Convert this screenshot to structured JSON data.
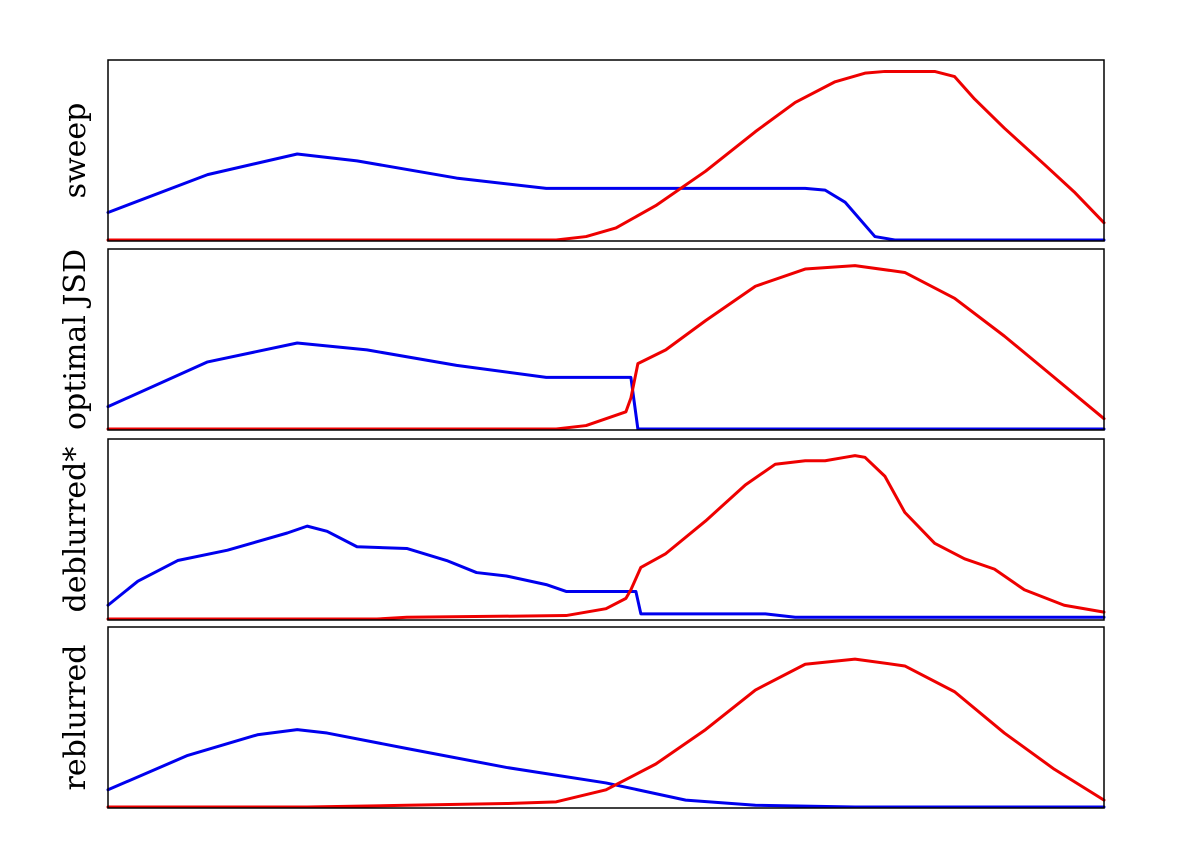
{
  "colors": {
    "series_a": "#0000ee",
    "series_b": "#ee0000",
    "frame": "#000000",
    "background": "#ffffff"
  },
  "chart_data": [
    {
      "type": "line",
      "panel_label": "sweep",
      "xlim": [
        0,
        1
      ],
      "ylim": [
        0,
        1
      ],
      "grid": false,
      "ticks": false,
      "series": [
        {
          "color": "#0000ee",
          "points": [
            [
              0,
              0.16
            ],
            [
              0.1,
              0.38
            ],
            [
              0.19,
              0.5
            ],
            [
              0.25,
              0.46
            ],
            [
              0.35,
              0.36
            ],
            [
              0.44,
              0.3
            ],
            [
              0.5,
              0.3
            ],
            [
              0.6,
              0.3
            ],
            [
              0.7,
              0.3
            ],
            [
              0.72,
              0.29
            ],
            [
              0.74,
              0.22
            ],
            [
              0.77,
              0.02
            ],
            [
              0.79,
              0.0
            ],
            [
              1,
              0.0
            ]
          ]
        },
        {
          "color": "#ee0000",
          "points": [
            [
              0,
              0.0
            ],
            [
              0.45,
              0.0
            ],
            [
              0.48,
              0.02
            ],
            [
              0.51,
              0.07
            ],
            [
              0.55,
              0.2
            ],
            [
              0.6,
              0.4
            ],
            [
              0.65,
              0.63
            ],
            [
              0.69,
              0.8
            ],
            [
              0.73,
              0.92
            ],
            [
              0.76,
              0.97
            ],
            [
              0.78,
              0.98
            ],
            [
              0.8,
              0.98
            ],
            [
              0.83,
              0.98
            ],
            [
              0.85,
              0.95
            ],
            [
              0.87,
              0.82
            ],
            [
              0.9,
              0.65
            ],
            [
              0.94,
              0.44
            ],
            [
              0.97,
              0.28
            ],
            [
              1,
              0.1
            ]
          ]
        }
      ]
    },
    {
      "type": "line",
      "panel_label": "optimal JSD",
      "xlim": [
        0,
        1
      ],
      "ylim": [
        0,
        1
      ],
      "grid": false,
      "ticks": false,
      "series": [
        {
          "color": "#0000ee",
          "points": [
            [
              0,
              0.13
            ],
            [
              0.1,
              0.39
            ],
            [
              0.19,
              0.5
            ],
            [
              0.26,
              0.46
            ],
            [
              0.35,
              0.37
            ],
            [
              0.44,
              0.3
            ],
            [
              0.52,
              0.3
            ],
            [
              0.525,
              0.3
            ],
            [
              0.532,
              0.0
            ],
            [
              1,
              0.0
            ]
          ]
        },
        {
          "color": "#ee0000",
          "points": [
            [
              0,
              0.0
            ],
            [
              0.45,
              0.0
            ],
            [
              0.48,
              0.02
            ],
            [
              0.52,
              0.1
            ],
            [
              0.525,
              0.18
            ],
            [
              0.532,
              0.38
            ],
            [
              0.56,
              0.46
            ],
            [
              0.6,
              0.63
            ],
            [
              0.65,
              0.83
            ],
            [
              0.7,
              0.93
            ],
            [
              0.75,
              0.95
            ],
            [
              0.8,
              0.91
            ],
            [
              0.85,
              0.76
            ],
            [
              0.9,
              0.54
            ],
            [
              0.95,
              0.3
            ],
            [
              1,
              0.06
            ]
          ]
        }
      ]
    },
    {
      "type": "line",
      "panel_label": "deblurred*",
      "xlim": [
        0,
        1
      ],
      "ylim": [
        0,
        1
      ],
      "grid": false,
      "ticks": false,
      "series": [
        {
          "color": "#0000ee",
          "points": [
            [
              0,
              0.08
            ],
            [
              0.03,
              0.22
            ],
            [
              0.07,
              0.34
            ],
            [
              0.12,
              0.4
            ],
            [
              0.18,
              0.5
            ],
            [
              0.2,
              0.54
            ],
            [
              0.22,
              0.51
            ],
            [
              0.25,
              0.42
            ],
            [
              0.3,
              0.41
            ],
            [
              0.34,
              0.34
            ],
            [
              0.37,
              0.27
            ],
            [
              0.4,
              0.25
            ],
            [
              0.44,
              0.2
            ],
            [
              0.46,
              0.16
            ],
            [
              0.5,
              0.16
            ],
            [
              0.52,
              0.16
            ],
            [
              0.53,
              0.16
            ],
            [
              0.535,
              0.03
            ],
            [
              0.6,
              0.03
            ],
            [
              0.66,
              0.03
            ],
            [
              0.69,
              0.01
            ],
            [
              1,
              0.01
            ]
          ]
        },
        {
          "color": "#ee0000",
          "points": [
            [
              0,
              0.0
            ],
            [
              0.27,
              0.0
            ],
            [
              0.3,
              0.01
            ],
            [
              0.46,
              0.02
            ],
            [
              0.5,
              0.06
            ],
            [
              0.52,
              0.12
            ],
            [
              0.525,
              0.17
            ],
            [
              0.535,
              0.3
            ],
            [
              0.56,
              0.38
            ],
            [
              0.6,
              0.57
            ],
            [
              0.64,
              0.78
            ],
            [
              0.67,
              0.9
            ],
            [
              0.7,
              0.92
            ],
            [
              0.72,
              0.92
            ],
            [
              0.74,
              0.94
            ],
            [
              0.75,
              0.95
            ],
            [
              0.76,
              0.94
            ],
            [
              0.78,
              0.83
            ],
            [
              0.8,
              0.62
            ],
            [
              0.83,
              0.44
            ],
            [
              0.86,
              0.35
            ],
            [
              0.89,
              0.29
            ],
            [
              0.92,
              0.17
            ],
            [
              0.96,
              0.08
            ],
            [
              1,
              0.04
            ]
          ]
        }
      ]
    },
    {
      "type": "line",
      "panel_label": "reblurred",
      "xlim": [
        0,
        1
      ],
      "ylim": [
        0,
        1
      ],
      "grid": false,
      "ticks": false,
      "series": [
        {
          "color": "#0000ee",
          "points": [
            [
              0,
              0.1
            ],
            [
              0.08,
              0.3
            ],
            [
              0.15,
              0.42
            ],
            [
              0.19,
              0.45
            ],
            [
              0.22,
              0.43
            ],
            [
              0.3,
              0.34
            ],
            [
              0.4,
              0.23
            ],
            [
              0.5,
              0.14
            ],
            [
              0.58,
              0.04
            ],
            [
              0.65,
              0.01
            ],
            [
              0.75,
              0.0
            ],
            [
              1,
              0.0
            ]
          ]
        },
        {
          "color": "#ee0000",
          "points": [
            [
              0,
              0.0
            ],
            [
              0.2,
              0.0
            ],
            [
              0.3,
              0.01
            ],
            [
              0.4,
              0.02
            ],
            [
              0.45,
              0.03
            ],
            [
              0.5,
              0.1
            ],
            [
              0.55,
              0.25
            ],
            [
              0.6,
              0.45
            ],
            [
              0.65,
              0.68
            ],
            [
              0.7,
              0.83
            ],
            [
              0.75,
              0.86
            ],
            [
              0.8,
              0.82
            ],
            [
              0.85,
              0.67
            ],
            [
              0.9,
              0.43
            ],
            [
              0.95,
              0.22
            ],
            [
              1,
              0.04
            ]
          ]
        }
      ]
    }
  ]
}
